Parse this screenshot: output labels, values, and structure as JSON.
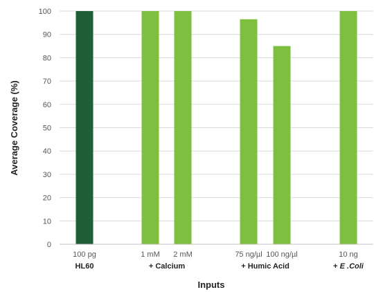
{
  "chart_data": {
    "type": "bar",
    "title": "",
    "xlabel": "Inputs",
    "ylabel": "Average Coverage (%)",
    "ylim": [
      0,
      100
    ],
    "yticks": [
      0,
      10,
      20,
      30,
      40,
      50,
      60,
      70,
      80,
      90,
      100
    ],
    "grid": true,
    "categories": [
      "100 pg",
      "1 mM",
      "2 mM",
      "75 ng/µl",
      "100 ng/µl",
      "10 ng"
    ],
    "values": [
      100,
      100,
      100,
      96.5,
      85,
      100
    ],
    "groups": [
      {
        "label": "HL60",
        "prefix": "",
        "italic": false
      },
      {
        "label": "Calcium",
        "prefix": "+",
        "italic": false
      },
      {
        "label": "Humic Acid",
        "prefix": "+",
        "italic": false
      },
      {
        "label": "E .Coli",
        "prefix": "+",
        "italic": true
      }
    ],
    "colors": {
      "HL60": "#1f5f38",
      "treatment": "#7fbf3f"
    }
  }
}
